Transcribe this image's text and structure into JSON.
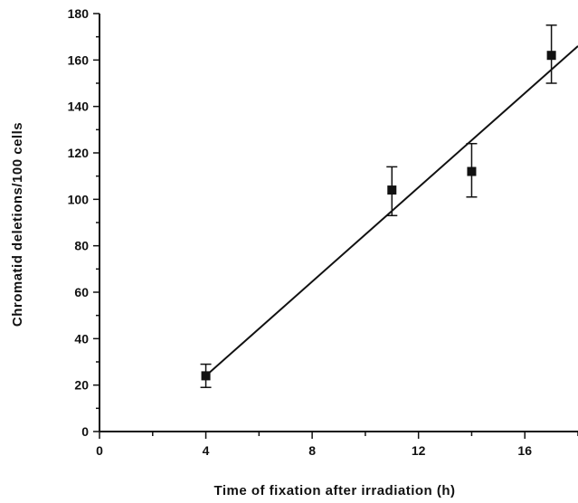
{
  "chart_data": {
    "type": "scatter",
    "title": "",
    "xlabel": "Time of fixation after irradiation (h)",
    "ylabel": "Chromatid deletions/100 cells",
    "xlim": [
      0,
      18
    ],
    "ylim": [
      0,
      180
    ],
    "xticks": [
      0,
      4,
      8,
      12,
      16
    ],
    "yticks": [
      0,
      20,
      40,
      60,
      80,
      100,
      120,
      140,
      160,
      180
    ],
    "grid": false,
    "legend": "none",
    "series": [
      {
        "points": [
          {
            "x": 4,
            "y": 24,
            "err_low": 19,
            "err_high": 29
          },
          {
            "x": 11,
            "y": 104,
            "err_low": 93,
            "err_high": 114
          },
          {
            "x": 14,
            "y": 112,
            "err_low": 101,
            "err_high": 124
          },
          {
            "x": 17,
            "y": 162,
            "err_low": 150,
            "err_high": 175
          }
        ]
      }
    ],
    "fit_line": {
      "x_start": 4,
      "y_start": 24,
      "x_end": 18,
      "y_end": 166
    },
    "colors": {
      "ink": "#111111",
      "background": "#ffffff"
    }
  }
}
